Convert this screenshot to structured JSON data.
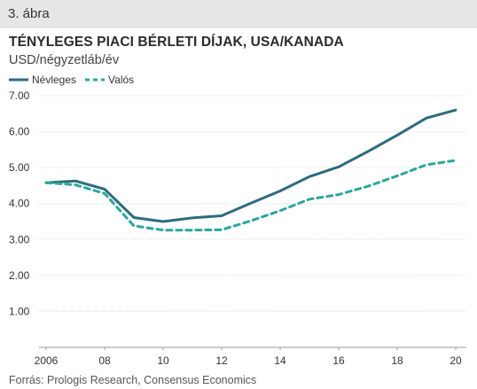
{
  "figure_label": "3. ábra",
  "title": "TÉNYLEGES PIACI BÉRLETI DÍJAK, USA/KANADA",
  "subtitle": "USD/négyzetláb/év",
  "source": "Forrás: Prologis Research, Consensus Economics",
  "chart_data": {
    "type": "line",
    "x": [
      2006,
      2007,
      2008,
      2009,
      2010,
      2011,
      2012,
      2013,
      2014,
      2015,
      2016,
      2017,
      2018,
      2019,
      2020
    ],
    "x_ticks": [
      2006,
      2008,
      2010,
      2012,
      2014,
      2016,
      2018,
      2020
    ],
    "x_tick_labels": [
      "2006",
      "08",
      "10",
      "12",
      "14",
      "16",
      "18",
      "20"
    ],
    "y_ticks": [
      1.0,
      2.0,
      3.0,
      4.0,
      5.0,
      6.0,
      7.0
    ],
    "y_tick_labels": [
      "1.00",
      "2.00",
      "3.00",
      "4.00",
      "5.00",
      "6.00",
      "7.00"
    ],
    "ylim": [
      0,
      7.0
    ],
    "xlim": [
      2006,
      2020
    ],
    "grid": true,
    "legend_position": "top-left",
    "series": [
      {
        "name": "Névleges",
        "style": "solid",
        "color": "#2e6b7e",
        "values": [
          4.58,
          4.63,
          4.4,
          3.61,
          3.5,
          3.6,
          3.66,
          4.01,
          4.35,
          4.75,
          5.02,
          5.45,
          5.9,
          6.38,
          6.6
        ]
      },
      {
        "name": "Valós",
        "style": "dashed",
        "color": "#2aa79a",
        "values": [
          4.58,
          4.52,
          4.28,
          3.38,
          3.26,
          3.26,
          3.27,
          3.52,
          3.8,
          4.12,
          4.25,
          4.48,
          4.77,
          5.08,
          5.2
        ]
      }
    ]
  }
}
